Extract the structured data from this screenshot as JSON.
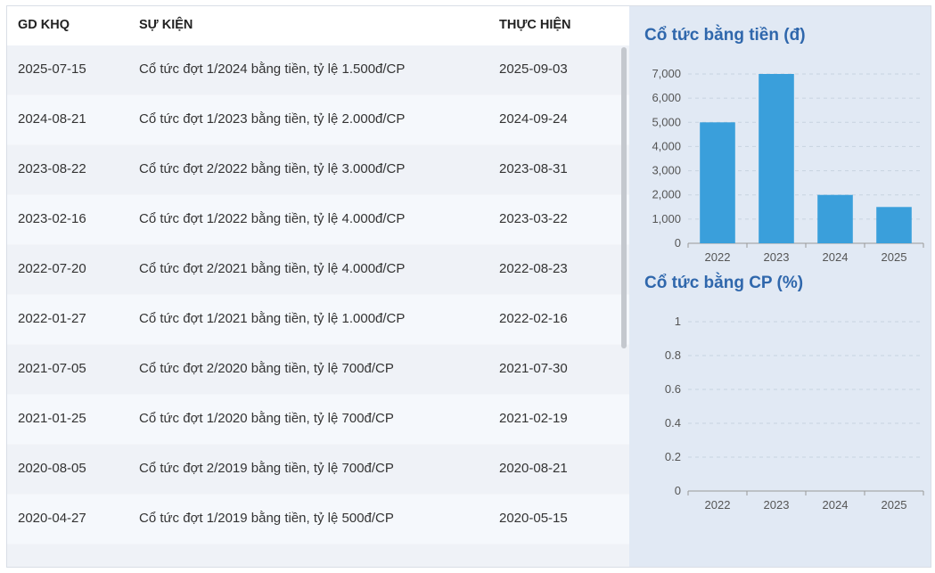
{
  "table": {
    "headers": {
      "date_ex": "GD KHQ",
      "event": "SỰ KIỆN",
      "date_exec": "THỰC HIỆN"
    },
    "rows": [
      {
        "date_ex": "2025-07-15",
        "event": "Cổ tức đợt 1/2024 bằng tiền, tỷ lệ 1.500đ/CP",
        "date_exec": "2025-09-03"
      },
      {
        "date_ex": "2024-08-21",
        "event": "Cổ tức đợt 1/2023 bằng tiền, tỷ lệ 2.000đ/CP",
        "date_exec": "2024-09-24"
      },
      {
        "date_ex": "2023-08-22",
        "event": "Cổ tức đợt 2/2022 bằng tiền, tỷ lệ 3.000đ/CP",
        "date_exec": "2023-08-31"
      },
      {
        "date_ex": "2023-02-16",
        "event": "Cổ tức đợt 1/2022 bằng tiền, tỷ lệ 4.000đ/CP",
        "date_exec": "2023-03-22"
      },
      {
        "date_ex": "2022-07-20",
        "event": "Cổ tức đợt 2/2021 bằng tiền, tỷ lệ 4.000đ/CP",
        "date_exec": "2022-08-23"
      },
      {
        "date_ex": "2022-01-27",
        "event": "Cổ tức đợt 1/2021 bằng tiền, tỷ lệ 1.000đ/CP",
        "date_exec": "2022-02-16"
      },
      {
        "date_ex": "2021-07-05",
        "event": "Cổ tức đợt 2/2020 bằng tiền, tỷ lệ 700đ/CP",
        "date_exec": "2021-07-30"
      },
      {
        "date_ex": "2021-01-25",
        "event": "Cổ tức đợt 1/2020 bằng tiền, tỷ lệ 700đ/CP",
        "date_exec": "2021-02-19"
      },
      {
        "date_ex": "2020-08-05",
        "event": "Cổ tức đợt 2/2019 bằng tiền, tỷ lệ 700đ/CP",
        "date_exec": "2020-08-21"
      },
      {
        "date_ex": "2020-04-27",
        "event": "Cổ tức đợt 1/2019 bằng tiền, tỷ lệ 500đ/CP",
        "date_exec": "2020-05-15"
      }
    ]
  },
  "colors": {
    "bar": "#3a9fdb",
    "title": "#2f67ac",
    "panel": "#e1e9f4"
  },
  "chart_data": [
    {
      "type": "bar",
      "title": "Cổ tức bằng tiền (đ)",
      "categories": [
        "2022",
        "2023",
        "2024",
        "2025"
      ],
      "values": [
        5000,
        7000,
        2000,
        1500
      ],
      "ylim": [
        0,
        7000
      ],
      "yticks": [
        "0",
        "1,000",
        "2,000",
        "3,000",
        "4,000",
        "5,000",
        "6,000",
        "7,000"
      ],
      "grid": true
    },
    {
      "type": "bar",
      "title": "Cổ tức bằng CP (%)",
      "categories": [
        "2022",
        "2023",
        "2024",
        "2025"
      ],
      "values": [
        0,
        0,
        0,
        0
      ],
      "ylim": [
        0,
        1
      ],
      "yticks": [
        "0",
        "0.2",
        "0.4",
        "0.6",
        "0.8",
        "1"
      ],
      "grid": true
    }
  ]
}
